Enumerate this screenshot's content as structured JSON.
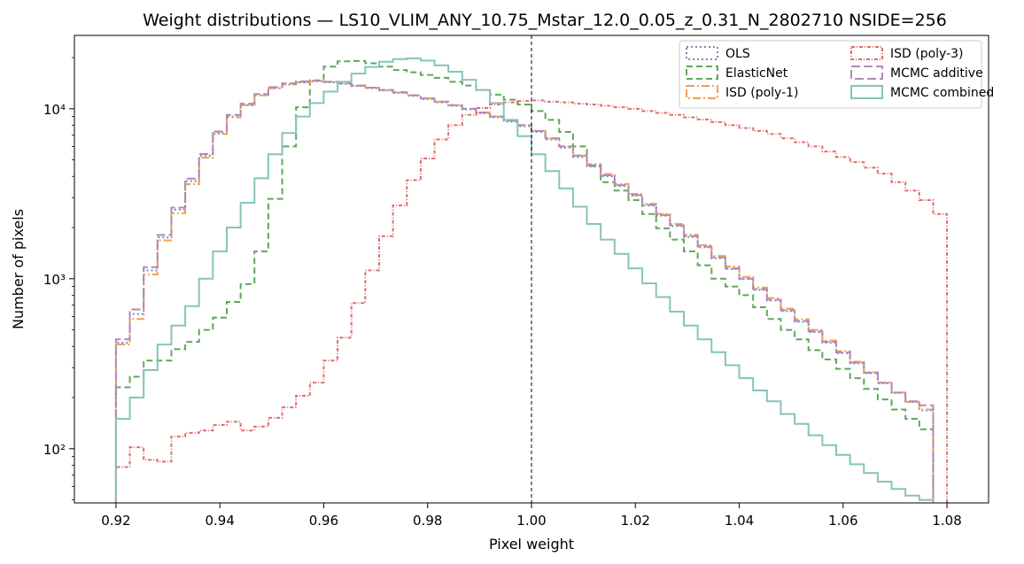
{
  "chart_data": {
    "type": "step-histogram",
    "title": "Weight distributions — LS10_VLIM_ANY_10.75_Mstar_12.0_0.05_z_0.31_N_2802710  NSIDE=256",
    "xlabel": "Pixel weight",
    "ylabel": "Number of pixels",
    "xlim": [
      0.912,
      1.088
    ],
    "ylim": [
      48,
      27000
    ],
    "yscale": "log",
    "x_ticks": [
      0.92,
      0.94,
      0.96,
      0.98,
      1.0,
      1.02,
      1.04,
      1.06,
      1.08
    ],
    "x_tick_labels": [
      "0.92",
      "0.94",
      "0.96",
      "0.98",
      "1.00",
      "1.02",
      "1.04",
      "1.06",
      "1.08"
    ],
    "y_ticks": [
      100,
      1000,
      10000
    ],
    "y_tick_labels": [
      "10²",
      "10³",
      "10⁴"
    ],
    "reference_line": {
      "x": 1.0,
      "style": "dashed",
      "color": "#000000"
    },
    "bins": {
      "start": 0.92,
      "end": 1.08,
      "count": 60
    },
    "legend": {
      "placement": "top-right",
      "columns": 2
    },
    "series": [
      {
        "name": "OLS",
        "color": "#6f8fb8",
        "dash": "2,3",
        "values": [
          420,
          620,
          1120,
          1750,
          2550,
          3750,
          5300,
          7200,
          9000,
          10500,
          12000,
          13200,
          13900,
          14300,
          14500,
          14300,
          14000,
          13600,
          13200,
          12800,
          12400,
          11900,
          11400,
          10900,
          10400,
          9900,
          9400,
          8900,
          8400,
          7900,
          7300,
          6600,
          5900,
          5200,
          4580,
          4010,
          3510,
          3080,
          2690,
          2350,
          2040,
          1760,
          1530,
          1320,
          1140,
          995,
          860,
          745,
          645,
          558,
          485,
          420,
          365,
          318,
          278,
          243,
          213,
          188,
          168,
          0
        ]
      },
      {
        "name": "ElasticNet",
        "color": "#5fa85a",
        "dash": "7,4",
        "values": [
          230,
          265,
          330,
          330,
          385,
          425,
          500,
          590,
          730,
          930,
          1450,
          2950,
          6000,
          10200,
          14700,
          17700,
          19000,
          19100,
          18500,
          17700,
          16900,
          16400,
          15800,
          15200,
          14400,
          13700,
          12900,
          12100,
          11300,
          10600,
          9700,
          8600,
          7300,
          6000,
          4600,
          3700,
          3300,
          2900,
          2400,
          1980,
          1700,
          1450,
          1200,
          1000,
          900,
          800,
          680,
          580,
          500,
          440,
          380,
          335,
          295,
          260,
          225,
          195,
          170,
          150,
          130,
          0
        ]
      },
      {
        "name": "ISD (poly-1)",
        "color": "#f0a050",
        "dash": "9,3,2,3",
        "values": [
          410,
          580,
          1060,
          1680,
          2430,
          3600,
          5150,
          7100,
          8900,
          10500,
          12000,
          13200,
          13900,
          14300,
          14500,
          14400,
          14100,
          13700,
          13300,
          12900,
          12500,
          12000,
          11500,
          11000,
          10500,
          10000,
          9500,
          9000,
          8500,
          8000,
          7400,
          6700,
          6000,
          5300,
          4720,
          4130,
          3610,
          3160,
          2760,
          2410,
          2100,
          1815,
          1575,
          1360,
          1180,
          1025,
          888,
          770,
          667,
          578,
          500,
          433,
          375,
          325,
          282,
          245,
          214,
          189,
          170,
          0
        ]
      },
      {
        "name": "ISD (poly-3)",
        "color": "#e06c6c",
        "dash": "4,2,1,2",
        "values": [
          78,
          102,
          86,
          84,
          118,
          124,
          128,
          138,
          144,
          128,
          135,
          152,
          175,
          205,
          245,
          330,
          450,
          720,
          1120,
          1780,
          2700,
          3800,
          5100,
          6600,
          8000,
          9200,
          10100,
          10600,
          10900,
          11100,
          11200,
          11000,
          10900,
          10700,
          10600,
          10400,
          10200,
          10000,
          9700,
          9450,
          9200,
          8900,
          8650,
          8350,
          8000,
          7700,
          7400,
          7100,
          6700,
          6350,
          6000,
          5600,
          5200,
          4850,
          4500,
          4150,
          3700,
          3300,
          2900,
          2400
        ]
      },
      {
        "name": "MCMC additive",
        "color": "#b388ba",
        "dash": "10,4",
        "values": [
          440,
          660,
          1170,
          1810,
          2620,
          3880,
          5420,
          7350,
          9200,
          10700,
          12200,
          13400,
          14100,
          14500,
          14600,
          14400,
          14100,
          13700,
          13300,
          12900,
          12500,
          12000,
          11500,
          11000,
          10500,
          10000,
          9500,
          9000,
          8500,
          8000,
          7400,
          6700,
          6000,
          5300,
          4650,
          4060,
          3550,
          3110,
          2720,
          2370,
          2060,
          1780,
          1545,
          1335,
          1150,
          1000,
          868,
          752,
          652,
          564,
          490,
          425,
          369,
          321,
          280,
          244,
          214,
          190,
          180,
          0
        ]
      },
      {
        "name": "MCMC combined",
        "color": "#86c4bb",
        "dash": "",
        "values": [
          150,
          200,
          290,
          410,
          530,
          690,
          1000,
          1450,
          2000,
          2800,
          3900,
          5400,
          7200,
          9000,
          10800,
          12600,
          14400,
          16100,
          17600,
          18900,
          19600,
          19800,
          19200,
          18000,
          16500,
          14800,
          12900,
          10800,
          8600,
          6900,
          5400,
          4300,
          3400,
          2650,
          2100,
          1700,
          1400,
          1150,
          940,
          780,
          640,
          530,
          440,
          370,
          310,
          260,
          220,
          190,
          160,
          140,
          120,
          105,
          92,
          81,
          72,
          64,
          58,
          53,
          50,
          0
        ]
      }
    ]
  }
}
